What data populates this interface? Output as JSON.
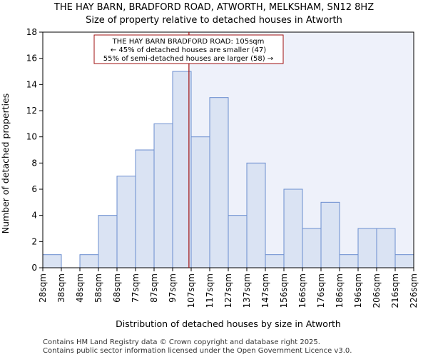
{
  "chart_data": {
    "type": "bar",
    "title": "THE HAY BARN, BRADFORD ROAD, ATWORTH, MELKSHAM, SN12 8HZ",
    "subtitle": "Size of property relative to detached houses in Atworth",
    "xlabel": "Distribution of detached houses by size in Atworth",
    "ylabel": "Number of detached properties",
    "bin_edges": [
      "28sqm",
      "38sqm",
      "48sqm",
      "58sqm",
      "68sqm",
      "77sqm",
      "87sqm",
      "97sqm",
      "107sqm",
      "117sqm",
      "127sqm",
      "137sqm",
      "147sqm",
      "156sqm",
      "166sqm",
      "176sqm",
      "186sqm",
      "196sqm",
      "206sqm",
      "216sqm",
      "226sqm"
    ],
    "values": [
      1,
      0,
      1,
      4,
      7,
      9,
      11,
      15,
      10,
      13,
      4,
      8,
      1,
      6,
      3,
      5,
      1,
      3,
      3,
      1
    ],
    "ylim": [
      0,
      18
    ],
    "yticks": [
      0,
      2,
      4,
      6,
      8,
      10,
      12,
      14,
      16,
      18
    ],
    "marker_value": 105,
    "marker_bin_position": 7.88,
    "annotation": {
      "line1": "THE HAY BARN BRADFORD ROAD: 105sqm",
      "line2": "← 45% of detached houses are smaller (47)",
      "line3": "55% of semi-detached houses are larger (58) →"
    },
    "colors": {
      "bar_fill": "#dae3f3",
      "bar_stroke": "#6b8ecf",
      "highlight_region": "#eef1fa",
      "marker_line": "#a01010",
      "annotation_border": "#a01010"
    }
  },
  "footer": {
    "line1": "Contains HM Land Registry data © Crown copyright and database right 2025.",
    "line2": "Contains public sector information licensed under the Open Government Licence v3.0."
  }
}
